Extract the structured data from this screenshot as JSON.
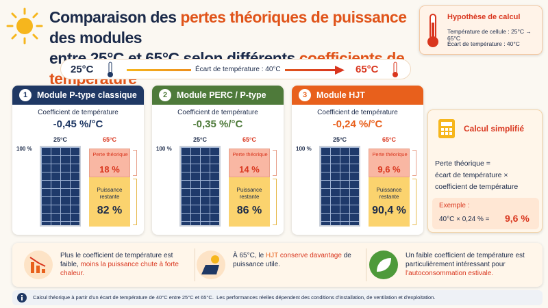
{
  "header": {
    "title": [
      {
        "text": "Comparaison des ",
        "color": "#1b2a49"
      },
      {
        "text": "pertes théoriques de puissance",
        "color": "#e0541a"
      },
      {
        "text": " des modules",
        "color": "#1b2a49"
      }
    ],
    "title_line2": [
      {
        "text": "entre 25°C et 65°C selon différents ",
        "color": "#1b2a49"
      },
      {
        "text": "coefficients de température",
        "color": "#e0541a"
      }
    ]
  },
  "hypothesis": {
    "title": "Hypothèse de calcul",
    "lines": [
      "Température de cellule : 25°C → 65°C",
      "Écart de température : 40°C"
    ]
  },
  "temperature_bar": {
    "start": "25°C",
    "middle": "Écart de température : 40°C",
    "end": "65°C"
  },
  "modules": [
    {
      "number": "1",
      "name": "Module P-type classique",
      "color": "#1f3864",
      "coefficient_label": "Coefficient de température",
      "coefficient": "-0,45 %/°C",
      "cold": "25°C",
      "hot": "65°C",
      "full": "100 %",
      "loss_label": "Perte théorique",
      "loss": "18 %",
      "remaining_label": "Puissance restante",
      "remaining": "82 %"
    },
    {
      "number": "2",
      "name": "Module PERC / P-type",
      "color": "#4e7a3a",
      "coefficient_label": "Coefficient de température",
      "coefficient": "-0,35 %/°C",
      "cold": "25°C",
      "hot": "65°C",
      "full": "100 %",
      "loss_label": "Perte théorique",
      "loss": "14 %",
      "remaining_label": "Puissance restante",
      "remaining": "86 %"
    },
    {
      "number": "3",
      "name": "Module HJT",
      "color": "#e8601c",
      "coefficient_label": "Coefficient de température",
      "coefficient": "-0,24 %/°C",
      "cold": "25°C",
      "hot": "65°C",
      "full": "100 %",
      "loss_label": "Perte théorique",
      "loss": "9,6 %",
      "remaining_label": "Puissance restante",
      "remaining": "90,4 %"
    }
  ],
  "calculation": {
    "title": "Calcul simplifié",
    "formula": [
      "Perte théorique =",
      "écart de température ×",
      "coefficient de température"
    ],
    "example_label": "Exemple :",
    "example": "40°C × 0,24 % =",
    "result": "9,6 %"
  },
  "tips": [
    [
      {
        "text": "Plus le coefficient de température est faible, ",
        "color": "#1b2a49"
      },
      {
        "text": "moins la puissance chute à forte chaleur.",
        "color": "#d9361e"
      }
    ],
    [
      {
        "text": "À 65°C, le ",
        "color": "#1b2a49"
      },
      {
        "text": "HJT",
        "color": "#e8601c"
      },
      {
        "text": " conserve davantage",
        "color": "#d9361e"
      },
      {
        "text": " de puissance utile.",
        "color": "#1b2a49"
      }
    ],
    [
      {
        "text": "Un faible coefficient de température est particulièrement intéressant pour ",
        "color": "#1b2a49"
      },
      {
        "text": "l'autoconsommation estivale.",
        "color": "#d9361e"
      }
    ]
  ],
  "footnote": [
    "Calcul théorique à partir d'un écart de température de 40°C entre 25°C et 65°C.",
    "Les performances réelles dépendent des conditions d'installation, de ventilation et d'exploitation."
  ]
}
